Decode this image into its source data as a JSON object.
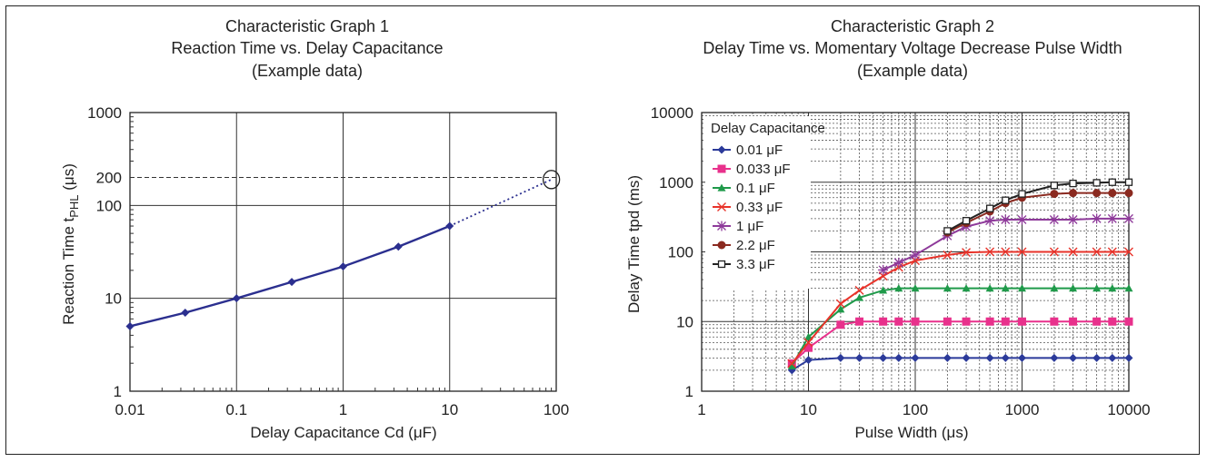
{
  "colors": {
    "axis": "#222222",
    "grid_major": "#333333",
    "grid_minor": "#555555",
    "series1": "#2b2f8f"
  },
  "chart_data": [
    {
      "type": "line",
      "title": "Characteristic Graph 1",
      "subtitle": "Reaction Time vs. Delay Capacitance",
      "note": "(Example data)",
      "xlabel": "Delay Capacitance  Cd  (μF)",
      "ylabel_main": "Reaction Time  t",
      "ylabel_sub": "PHL",
      "ylabel_tail": "  (μs)",
      "xscale": "log",
      "yscale": "log",
      "xlim": [
        0.01,
        100
      ],
      "ylim": [
        1,
        1000
      ],
      "x_ticks": [
        "0.01",
        "0.1",
        "1",
        "10",
        "100"
      ],
      "y_ticks": [
        "1",
        "10",
        "100",
        "1000"
      ],
      "y_extra_tick": "200",
      "grid": "major",
      "series": [
        {
          "color": "#2b2f8f",
          "x": [
            0.01,
            0.033,
            0.1,
            0.33,
            1,
            3.3,
            10
          ],
          "y": [
            5,
            7,
            10,
            15,
            22,
            36,
            60
          ]
        }
      ],
      "extrapolation": {
        "x": [
          10,
          90
        ],
        "y": [
          60,
          190
        ],
        "style": "dotted"
      },
      "reference_line": {
        "y": 200,
        "style": "dashed"
      },
      "highlight_point": {
        "x": 90,
        "y": 190
      }
    },
    {
      "type": "line",
      "title": "Characteristic Graph 2",
      "subtitle": "Delay Time vs. Momentary Voltage Decrease Pulse Width",
      "note": "(Example data)",
      "xlabel": "Pulse Width  (μs)",
      "ylabel": "Delay Time  tpd  (ms)",
      "xscale": "log",
      "yscale": "log",
      "xlim": [
        1,
        10000
      ],
      "ylim": [
        1,
        10000
      ],
      "x_ticks": [
        "1",
        "10",
        "100",
        "1000",
        "10000"
      ],
      "y_ticks": [
        "1",
        "10",
        "100",
        "1000",
        "10000"
      ],
      "grid": "major+minor",
      "legend_title": "Delay Capacitance",
      "legend_position": "top-left",
      "series": [
        {
          "name": "0.01 μF",
          "color": "#2b3a9a",
          "marker": "diamond",
          "x": [
            7,
            10,
            20,
            30,
            50,
            70,
            100,
            200,
            300,
            500,
            700,
            1000,
            2000,
            3000,
            5000,
            7000,
            10000
          ],
          "y": [
            2,
            2.8,
            3,
            3,
            3,
            3,
            3,
            3,
            3,
            3,
            3,
            3,
            3,
            3,
            3,
            3,
            3
          ]
        },
        {
          "name": "0.033 μF",
          "color": "#e8318c",
          "marker": "square",
          "x": [
            7,
            10,
            20,
            30,
            50,
            70,
            100,
            200,
            300,
            500,
            700,
            1000,
            2000,
            3000,
            5000,
            7000,
            10000
          ],
          "y": [
            2.5,
            4.2,
            9,
            10,
            10,
            10,
            10,
            10,
            10,
            10,
            10,
            10,
            10,
            10,
            10,
            10,
            10
          ]
        },
        {
          "name": "0.1 μF",
          "color": "#1f9a4a",
          "marker": "triangle",
          "x": [
            7,
            10,
            20,
            30,
            50,
            70,
            100,
            200,
            300,
            500,
            700,
            1000,
            2000,
            3000,
            5000,
            7000,
            10000
          ],
          "y": [
            2.3,
            6,
            15,
            22,
            28,
            30,
            30,
            30,
            30,
            30,
            30,
            30,
            30,
            30,
            30,
            30,
            30
          ]
        },
        {
          "name": "0.33 μF",
          "color": "#e8332a",
          "marker": "x",
          "x": [
            7,
            10,
            20,
            30,
            50,
            70,
            100,
            200,
            300,
            500,
            700,
            1000,
            2000,
            3000,
            5000,
            7000,
            10000
          ],
          "y": [
            2.5,
            5,
            18,
            28,
            45,
            60,
            75,
            90,
            98,
            100,
            100,
            100,
            100,
            100,
            100,
            100,
            100
          ]
        },
        {
          "name": "1 μF",
          "color": "#8e3a9a",
          "marker": "star",
          "x": [
            50,
            70,
            100,
            200,
            300,
            500,
            700,
            1000,
            2000,
            3000,
            5000,
            7000,
            10000
          ],
          "y": [
            55,
            70,
            90,
            170,
            230,
            280,
            290,
            290,
            290,
            290,
            300,
            300,
            300
          ]
        },
        {
          "name": "2.2 μF",
          "color": "#8b2a20",
          "marker": "circle",
          "x": [
            200,
            300,
            500,
            700,
            1000,
            2000,
            3000,
            5000,
            7000,
            10000
          ],
          "y": [
            190,
            260,
            380,
            500,
            600,
            680,
            700,
            700,
            700,
            700
          ]
        },
        {
          "name": "3.3 μF",
          "color": "#222222",
          "marker": "open-square",
          "x": [
            200,
            300,
            500,
            700,
            1000,
            2000,
            3000,
            5000,
            7000,
            10000
          ],
          "y": [
            200,
            280,
            420,
            550,
            680,
            900,
            960,
            980,
            1000,
            1000
          ]
        }
      ]
    }
  ]
}
